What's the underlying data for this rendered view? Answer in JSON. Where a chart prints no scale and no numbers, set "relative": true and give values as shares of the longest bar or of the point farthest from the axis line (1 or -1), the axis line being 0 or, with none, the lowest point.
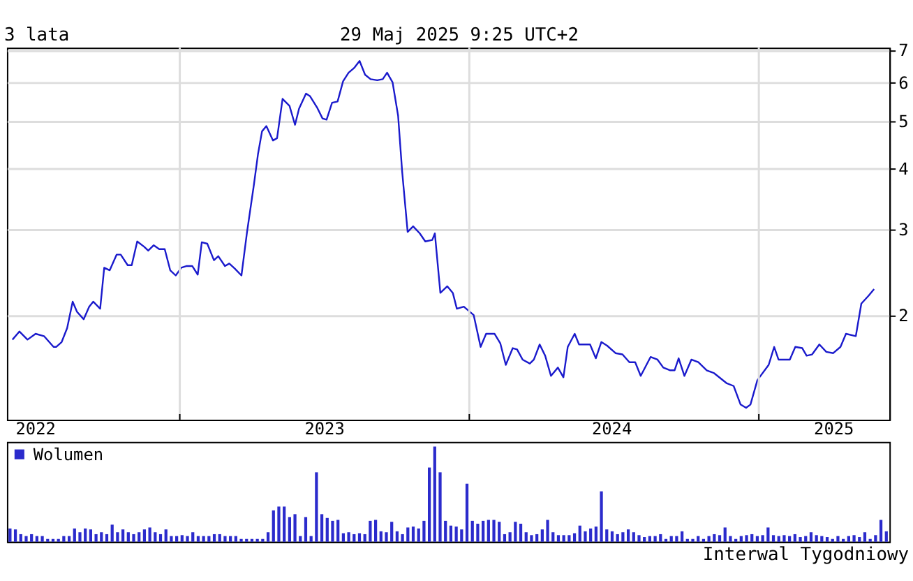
{
  "chart_data": [
    {
      "type": "line",
      "title": "3 lata",
      "subtitle": "29 Maj 2025 9:25 UTC+2",
      "log": true,
      "grid": true,
      "x": [
        2022.422,
        2022.446,
        2022.474,
        2022.502,
        2022.531,
        2022.564,
        2022.573,
        2022.592,
        2022.611,
        2022.63,
        2022.645,
        2022.668,
        2022.687,
        2022.701,
        2022.725,
        2022.739,
        2022.758,
        2022.782,
        2022.796,
        2022.82,
        2022.834,
        2022.853,
        2022.877,
        2022.891,
        2022.91,
        2022.929,
        2022.948,
        2022.967,
        2022.986,
        2023.005,
        2023.024,
        2023.043,
        2023.062,
        2023.076,
        2023.095,
        2023.118,
        2023.133,
        2023.156,
        2023.171,
        2023.19,
        2023.213,
        2023.232,
        2023.256,
        2023.27,
        2023.284,
        2023.299,
        2023.322,
        2023.336,
        2023.355,
        2023.379,
        2023.398,
        2023.412,
        2023.436,
        2023.45,
        2023.474,
        2023.493,
        2023.507,
        2023.526,
        2023.545,
        2023.564,
        2023.583,
        2023.602,
        2023.621,
        2023.64,
        2023.659,
        2023.682,
        2023.701,
        2023.716,
        2023.735,
        2023.754,
        2023.768,
        2023.787,
        2023.806,
        2023.829,
        2023.848,
        2023.872,
        2023.881,
        2023.9,
        2023.924,
        2023.943,
        2023.957,
        2023.981,
        2024.015,
        2024.039,
        2024.058,
        2024.087,
        2024.107,
        2024.126,
        2024.15,
        2024.165,
        2024.184,
        2024.209,
        2024.223,
        2024.243,
        2024.262,
        2024.282,
        2024.306,
        2024.325,
        2024.34,
        2024.364,
        2024.379,
        2024.417,
        2024.437,
        2024.456,
        2024.476,
        2024.505,
        2024.529,
        2024.553,
        2024.573,
        2024.592,
        2024.626,
        2024.65,
        2024.67,
        2024.694,
        2024.709,
        2024.723,
        2024.743,
        2024.767,
        2024.791,
        2024.82,
        2024.845,
        2024.888,
        2024.913,
        2024.937,
        2024.956,
        2024.971,
        2024.995,
        2025.034,
        2025.053,
        2025.068,
        2025.107,
        2025.126,
        2025.15,
        2025.165,
        2025.184,
        2025.209,
        2025.233,
        2025.257,
        2025.282,
        2025.301,
        2025.335,
        2025.354,
        2025.379,
        2025.398
      ],
      "series": [
        {
          "color": "#1a1acc",
          "values": [
            1.78,
            1.85,
            1.78,
            1.83,
            1.81,
            1.72,
            1.72,
            1.76,
            1.88,
            2.13,
            2.03,
            1.96,
            2.08,
            2.13,
            2.06,
            2.5,
            2.47,
            2.66,
            2.66,
            2.53,
            2.53,
            2.83,
            2.76,
            2.71,
            2.78,
            2.73,
            2.73,
            2.47,
            2.41,
            2.5,
            2.52,
            2.52,
            2.42,
            2.82,
            2.8,
            2.59,
            2.64,
            2.52,
            2.55,
            2.49,
            2.41,
            2.95,
            3.7,
            4.27,
            4.76,
            4.88,
            4.56,
            4.61,
            5.55,
            5.37,
            4.91,
            5.3,
            5.69,
            5.62,
            5.33,
            5.06,
            5.03,
            5.45,
            5.48,
            6.03,
            6.28,
            6.42,
            6.64,
            6.22,
            6.09,
            6.06,
            6.09,
            6.28,
            6.0,
            5.13,
            3.94,
            2.96,
            3.04,
            2.94,
            2.83,
            2.85,
            2.94,
            2.22,
            2.29,
            2.22,
            2.06,
            2.08,
            2.0,
            1.72,
            1.83,
            1.83,
            1.75,
            1.58,
            1.71,
            1.7,
            1.62,
            1.59,
            1.62,
            1.74,
            1.65,
            1.5,
            1.56,
            1.49,
            1.72,
            1.83,
            1.74,
            1.74,
            1.63,
            1.76,
            1.73,
            1.67,
            1.66,
            1.6,
            1.6,
            1.5,
            1.64,
            1.62,
            1.56,
            1.54,
            1.54,
            1.63,
            1.5,
            1.62,
            1.6,
            1.54,
            1.52,
            1.45,
            1.43,
            1.31,
            1.29,
            1.31,
            1.47,
            1.58,
            1.72,
            1.62,
            1.62,
            1.72,
            1.71,
            1.65,
            1.66,
            1.74,
            1.68,
            1.67,
            1.72,
            1.83,
            1.81,
            2.11,
            2.19,
            2.26
          ]
        }
      ],
      "xlim": [
        2022.403,
        2025.451
      ],
      "xticks": [
        {
          "value": 2022.5,
          "label": "2022"
        },
        {
          "value": 2023.0,
          "label": null
        },
        {
          "value": 2023.498,
          "label": "2023"
        },
        {
          "value": 2024.0,
          "label": null
        },
        {
          "value": 2024.49,
          "label": "2024"
        },
        {
          "value": 2025.0,
          "label": null
        },
        {
          "value": 2025.257,
          "label": "2025"
        }
      ],
      "ylim": [
        1.22,
        7.07
      ],
      "yticks": [
        2,
        3,
        4,
        5,
        6,
        7
      ]
    },
    {
      "type": "bar",
      "relative": true,
      "legend": "top left",
      "annotations": [
        "Interwal Tygodniowy"
      ],
      "categories": [
        null,
        null,
        null,
        null,
        null,
        null,
        null,
        null,
        null,
        null,
        null,
        null,
        null,
        null,
        null,
        null,
        null,
        null,
        null,
        null,
        null,
        null,
        null,
        null,
        null,
        null,
        null,
        null,
        null,
        null,
        null,
        null,
        null,
        null,
        null,
        null,
        null,
        null,
        null,
        null,
        null,
        null,
        null,
        null,
        null,
        null,
        null,
        null,
        null,
        null,
        null,
        null,
        null,
        null,
        null,
        null,
        null,
        null,
        null,
        null,
        null,
        null,
        null,
        null,
        null,
        null,
        null,
        null,
        null,
        null,
        null,
        null,
        null,
        null,
        null,
        null,
        null,
        null,
        null,
        null,
        null,
        null,
        null,
        null,
        null,
        null,
        null,
        null,
        null,
        null,
        null,
        null,
        null,
        null,
        null,
        null,
        null,
        null,
        null,
        null,
        null,
        null,
        null,
        null,
        null,
        null,
        null,
        null,
        null,
        null,
        null,
        null,
        null,
        null,
        null,
        null,
        null,
        null,
        null,
        null,
        null,
        null,
        null,
        null,
        null,
        null,
        null,
        null,
        null,
        null,
        null,
        null,
        null,
        null,
        null,
        null,
        null,
        null,
        null,
        null,
        null,
        null,
        null,
        null,
        null,
        null,
        null,
        null,
        null,
        null,
        null,
        null,
        null,
        null,
        null,
        null,
        null,
        null,
        null,
        null,
        null,
        null,
        null,
        null
      ],
      "series": [
        {
          "name": "Wolumen",
          "color": "#2b2bcc",
          "values": [
            0.14,
            0.13,
            0.08,
            0.06,
            0.08,
            0.06,
            0.06,
            0.03,
            0.03,
            0.03,
            0.06,
            0.06,
            0.14,
            0.1,
            0.14,
            0.13,
            0.08,
            0.1,
            0.08,
            0.18,
            0.1,
            0.13,
            0.1,
            0.08,
            0.1,
            0.13,
            0.15,
            0.1,
            0.08,
            0.13,
            0.06,
            0.06,
            0.07,
            0.06,
            0.1,
            0.06,
            0.06,
            0.06,
            0.08,
            0.08,
            0.06,
            0.06,
            0.06,
            0.03,
            0.03,
            0.03,
            0.03,
            0.03,
            0.1,
            0.33,
            0.37,
            0.37,
            0.26,
            0.29,
            0.06,
            0.26,
            0.06,
            0.73,
            0.29,
            0.25,
            0.22,
            0.23,
            0.09,
            0.1,
            0.08,
            0.09,
            0.08,
            0.22,
            0.23,
            0.11,
            0.1,
            0.21,
            0.11,
            0.08,
            0.15,
            0.16,
            0.14,
            0.22,
            0.78,
            1,
            0.73,
            0.22,
            0.17,
            0.16,
            0.13,
            0.61,
            0.22,
            0.19,
            0.22,
            0.23,
            0.23,
            0.21,
            0.08,
            0.1,
            0.21,
            0.19,
            0.1,
            0.07,
            0.08,
            0.13,
            0.23,
            0.1,
            0.07,
            0.07,
            0.07,
            0.09,
            0.17,
            0.11,
            0.14,
            0.16,
            0.53,
            0.13,
            0.11,
            0.08,
            0.1,
            0.13,
            0.1,
            0.07,
            0.05,
            0.06,
            0.06,
            0.08,
            0.03,
            0.06,
            0.06,
            0.11,
            0.03,
            0.03,
            0.06,
            0.03,
            0.06,
            0.08,
            0.07,
            0.15,
            0.06,
            0.03,
            0.06,
            0.07,
            0.08,
            0.06,
            0.07,
            0.15,
            0.07,
            0.06,
            0.07,
            0.06,
            0.08,
            0.05,
            0.06,
            0.1,
            0.07,
            0.06,
            0.05,
            0.03,
            0.06,
            0.03,
            0.06,
            0.07,
            0.05,
            0.1,
            0.03,
            0.07,
            0.23,
            0.11
          ]
        }
      ]
    }
  ]
}
